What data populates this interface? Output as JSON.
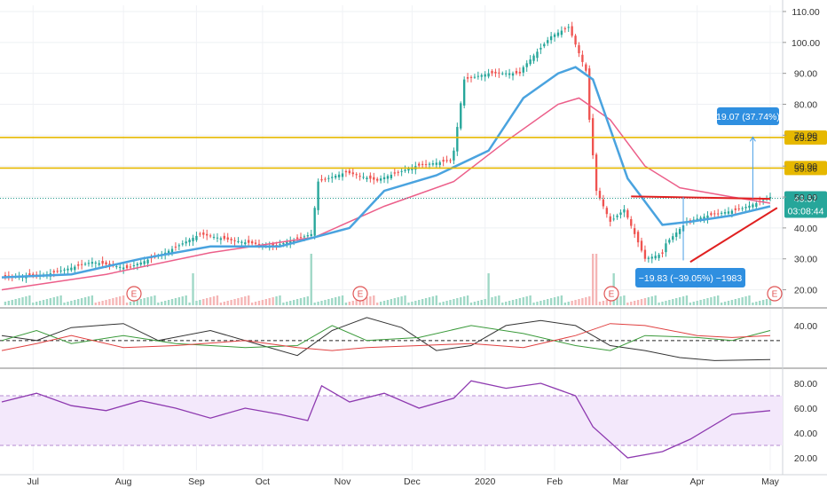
{
  "chart_data": {
    "type": "candlestick",
    "main_axis": {
      "ticks": [
        20,
        30,
        40,
        50,
        60,
        70,
        80,
        90,
        100,
        110
      ],
      "labels": [
        "20.00",
        "30.00",
        "40.00",
        "50.00",
        "60.00",
        "70.00",
        "80.00",
        "90.00",
        "100.00",
        "110.00"
      ],
      "range": [
        15,
        112
      ]
    },
    "x_ticks": [
      "Jul",
      "Aug",
      "Sep",
      "Oct",
      "Nov",
      "Dec",
      "2020",
      "Feb",
      "Mar",
      "Apr",
      "May"
    ],
    "months": [
      {
        "label": "Jul",
        "start": 0,
        "end": 26,
        "path": [
          [
            0,
            24
          ],
          [
            13,
            25
          ],
          [
            26,
            29
          ]
        ]
      },
      {
        "label": "Aug",
        "start": 26,
        "end": 47,
        "path": [
          [
            0,
            29
          ],
          [
            10,
            27
          ],
          [
            21,
            32
          ]
        ]
      },
      {
        "label": "Sep",
        "start": 47,
        "end": 66,
        "path": [
          [
            0,
            32
          ],
          [
            10,
            38
          ],
          [
            19,
            36
          ]
        ]
      },
      {
        "label": "Oct",
        "start": 66,
        "end": 89,
        "path": [
          [
            0,
            36
          ],
          [
            12,
            34
          ],
          [
            23,
            38
          ]
        ]
      },
      {
        "label": "Nov",
        "start": 89,
        "end": 109,
        "path": [
          [
            0,
            38
          ],
          [
            2,
            55
          ],
          [
            10,
            58
          ],
          [
            20,
            55
          ]
        ]
      },
      {
        "label": "Dec",
        "start": 109,
        "end": 130,
        "path": [
          [
            0,
            56
          ],
          [
            10,
            60
          ],
          [
            21,
            62
          ]
        ]
      },
      {
        "label": "2020",
        "start": 130,
        "end": 150,
        "path": [
          [
            0,
            65
          ],
          [
            3,
            88
          ],
          [
            10,
            90
          ],
          [
            20,
            90
          ]
        ]
      },
      {
        "label": "Feb",
        "start": 150,
        "end": 169,
        "path": [
          [
            0,
            92
          ],
          [
            8,
            102
          ],
          [
            13,
            105
          ],
          [
            19,
            88
          ]
        ]
      },
      {
        "label": "Mar",
        "start": 169,
        "end": 191,
        "path": [
          [
            0,
            75
          ],
          [
            2,
            52
          ],
          [
            6,
            42
          ],
          [
            10,
            46
          ],
          [
            16,
            30
          ],
          [
            22,
            32
          ]
        ]
      },
      {
        "label": "Apr",
        "start": 191,
        "end": 212,
        "path": [
          [
            0,
            35
          ],
          [
            6,
            42
          ],
          [
            12,
            44
          ],
          [
            21,
            46
          ]
        ]
      },
      {
        "label": "May",
        "start": 212,
        "end": 221,
        "path": [
          [
            0,
            46
          ],
          [
            5,
            48
          ],
          [
            9,
            50
          ]
        ]
      }
    ],
    "ema_fast": [
      [
        0,
        24
      ],
      [
        20,
        25
      ],
      [
        40,
        30
      ],
      [
        60,
        34
      ],
      [
        80,
        34
      ],
      [
        100,
        40
      ],
      [
        110,
        52
      ],
      [
        125,
        57
      ],
      [
        140,
        65
      ],
      [
        150,
        82
      ],
      [
        160,
        90
      ],
      [
        165,
        92
      ],
      [
        170,
        88
      ],
      [
        180,
        56
      ],
      [
        190,
        41
      ],
      [
        198,
        42
      ],
      [
        210,
        44
      ],
      [
        221,
        47
      ]
    ],
    "ema_slow": [
      [
        0,
        20
      ],
      [
        30,
        25
      ],
      [
        60,
        32
      ],
      [
        90,
        37
      ],
      [
        110,
        47
      ],
      [
        130,
        55
      ],
      [
        145,
        68
      ],
      [
        160,
        80
      ],
      [
        166,
        82
      ],
      [
        175,
        75
      ],
      [
        185,
        60
      ],
      [
        195,
        53
      ],
      [
        210,
        50
      ],
      [
        221,
        48
      ]
    ],
    "horizontal_levels": [
      {
        "value": 69.25,
        "label": "69.25",
        "color": "#e6b800"
      },
      {
        "value": 59.36,
        "label": "59.36",
        "color": "#e6b800"
      }
    ],
    "last_price": {
      "value": 49.57,
      "label": "49.57",
      "timer": "03:08:44"
    },
    "annotations": {
      "up_measure": {
        "label": "19.07 (37.74%)"
      },
      "down_measure": {
        "label": "−19.83 (−39.05%) −1983"
      }
    },
    "earnings_markers": [
      "E",
      "E",
      "E",
      "E"
    ],
    "osc_axis": {
      "ticks": [
        40
      ],
      "labels": [
        "40.00"
      ]
    },
    "oscillator": {
      "range": [
        0,
        55
      ],
      "dashed_level": 25,
      "plus_di": [
        [
          0,
          25
        ],
        [
          10,
          35
        ],
        [
          20,
          22
        ],
        [
          35,
          30
        ],
        [
          50,
          22
        ],
        [
          70,
          18
        ],
        [
          85,
          20
        ],
        [
          95,
          40
        ],
        [
          105,
          25
        ],
        [
          120,
          28
        ],
        [
          135,
          40
        ],
        [
          150,
          32
        ],
        [
          165,
          20
        ],
        [
          175,
          15
        ],
        [
          185,
          30
        ],
        [
          200,
          28
        ],
        [
          210,
          25
        ],
        [
          221,
          35
        ]
      ],
      "minus_di": [
        [
          0,
          15
        ],
        [
          10,
          22
        ],
        [
          20,
          30
        ],
        [
          35,
          18
        ],
        [
          50,
          20
        ],
        [
          70,
          25
        ],
        [
          85,
          18
        ],
        [
          95,
          15
        ],
        [
          105,
          18
        ],
        [
          120,
          20
        ],
        [
          135,
          22
        ],
        [
          150,
          18
        ],
        [
          165,
          30
        ],
        [
          175,
          42
        ],
        [
          185,
          40
        ],
        [
          200,
          30
        ],
        [
          210,
          28
        ],
        [
          221,
          30
        ]
      ],
      "adx": [
        [
          0,
          30
        ],
        [
          10,
          25
        ],
        [
          20,
          38
        ],
        [
          35,
          42
        ],
        [
          45,
          25
        ],
        [
          60,
          35
        ],
        [
          75,
          20
        ],
        [
          85,
          10
        ],
        [
          95,
          35
        ],
        [
          105,
          48
        ],
        [
          115,
          38
        ],
        [
          125,
          15
        ],
        [
          135,
          20
        ],
        [
          145,
          40
        ],
        [
          155,
          45
        ],
        [
          165,
          40
        ],
        [
          175,
          20
        ],
        [
          185,
          15
        ],
        [
          195,
          8
        ],
        [
          205,
          5
        ],
        [
          221,
          6
        ]
      ]
    },
    "rsi_axis": {
      "ticks": [
        20,
        40,
        60,
        80
      ],
      "labels": [
        "20.00",
        "40.00",
        "60.00",
        "80.00"
      ]
    },
    "rsi": {
      "band": [
        30,
        70
      ],
      "path": [
        [
          0,
          65
        ],
        [
          10,
          72
        ],
        [
          20,
          62
        ],
        [
          30,
          58
        ],
        [
          40,
          66
        ],
        [
          50,
          60
        ],
        [
          60,
          52
        ],
        [
          70,
          60
        ],
        [
          80,
          55
        ],
        [
          88,
          50
        ],
        [
          92,
          78
        ],
        [
          100,
          65
        ],
        [
          110,
          72
        ],
        [
          120,
          60
        ],
        [
          130,
          68
        ],
        [
          135,
          82
        ],
        [
          145,
          76
        ],
        [
          155,
          80
        ],
        [
          165,
          70
        ],
        [
          170,
          45
        ],
        [
          180,
          20
        ],
        [
          190,
          25
        ],
        [
          198,
          35
        ],
        [
          210,
          55
        ],
        [
          221,
          58
        ]
      ]
    }
  }
}
